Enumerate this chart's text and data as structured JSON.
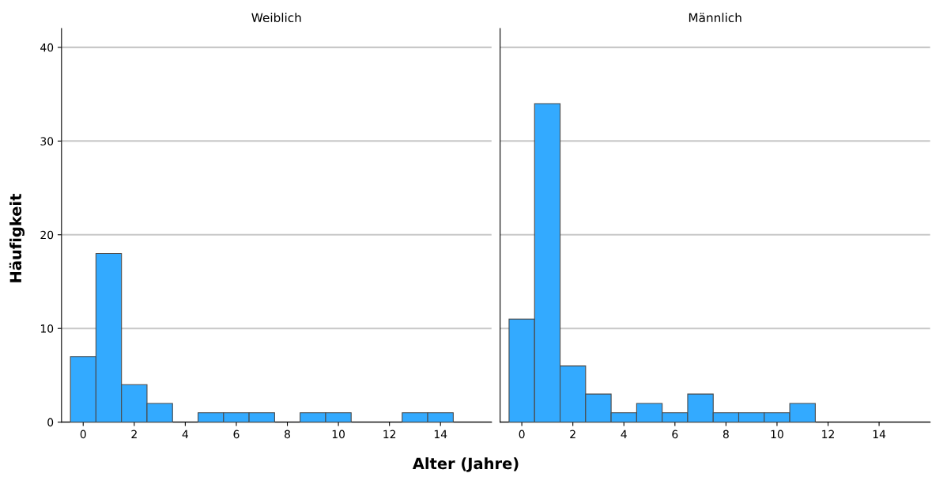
{
  "chart_data": [
    {
      "type": "histogram",
      "title": "Weiblich",
      "xlabel": "Alter (Jahre)",
      "ylabel": "Häufigkeit",
      "bins": [
        -0.5,
        0.5,
        1.5,
        2.5,
        3.5,
        4.5,
        5.5,
        6.5,
        7.5,
        8.5,
        9.5,
        10.5,
        11.5,
        12.5,
        13.5,
        14.5
      ],
      "values": [
        7,
        18,
        4,
        2,
        0,
        1,
        1,
        1,
        0,
        1,
        1,
        0,
        0,
        1,
        1
      ],
      "color": "#33aaff",
      "xlim": [
        -0.85,
        16
      ],
      "xticks": [
        0,
        2,
        4,
        6,
        8,
        10,
        12,
        14
      ],
      "ylim": [
        0,
        42
      ],
      "yticks": [
        0,
        10,
        20,
        30,
        40
      ],
      "grid": "y"
    },
    {
      "type": "histogram",
      "title": "Männlich",
      "bins": [
        -0.5,
        0.5,
        1.5,
        2.5,
        3.5,
        4.5,
        5.5,
        6.5,
        7.5,
        8.5,
        9.5,
        10.5,
        11.5,
        12.5,
        13.5,
        14.5
      ],
      "values": [
        11,
        34,
        6,
        3,
        1,
        2,
        1,
        3,
        1,
        1,
        1,
        2,
        0,
        0,
        0
      ],
      "color": "#33aaff",
      "xlim": [
        -0.85,
        16
      ],
      "xticks": [
        0,
        2,
        4,
        6,
        8,
        10,
        12,
        14
      ],
      "ylim": [
        0,
        42
      ],
      "yticks": [
        0,
        10,
        20,
        30,
        40
      ],
      "grid": "y",
      "tick_labels": "x"
    }
  ]
}
